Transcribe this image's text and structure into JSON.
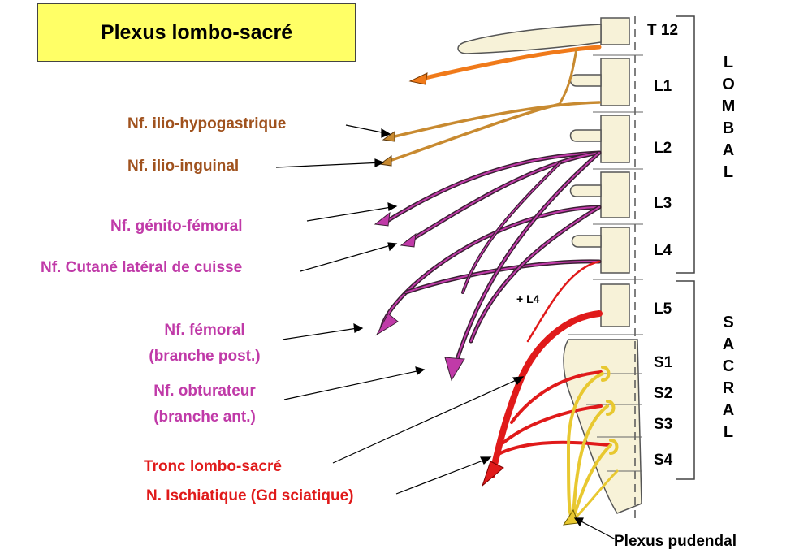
{
  "title": "Plexus lombo-sacré",
  "vertebrae": [
    "T 12",
    "L1",
    "L2",
    "L3",
    "L4",
    "L5",
    "S1",
    "S2",
    "S3",
    "S4"
  ],
  "regions": {
    "lombal": "LOMBAL",
    "sacral": "SACRAL"
  },
  "plus_l4": "+ L4",
  "nerves": {
    "ilio_hypogastrique": "Nf. ilio-hypogastrique",
    "ilio_inguinal": "Nf. ilio-inguinal",
    "genito_femoral": "Nf. génito-fémoral",
    "cutane_lateral": "Nf. Cutané latéral de cuisse",
    "femoral_1": "Nf. fémoral",
    "femoral_2": "(branche post.)",
    "obturateur_1": "Nf. obturateur",
    "obturateur_2": "(branche ant.)",
    "tronc": "Tronc lombo-sacré",
    "ischiatique": "N. Ischiatique (Gd sciatique)",
    "pudendal": "Plexus pudendal"
  },
  "colors": {
    "title_bg": "#ffff66",
    "brown": "#a0521e",
    "magenta": "#c03aa8",
    "red": "#e01a1a",
    "yellow": "#f5e04a",
    "orange": "#f07a1a",
    "bone": "#f7f2d8"
  }
}
